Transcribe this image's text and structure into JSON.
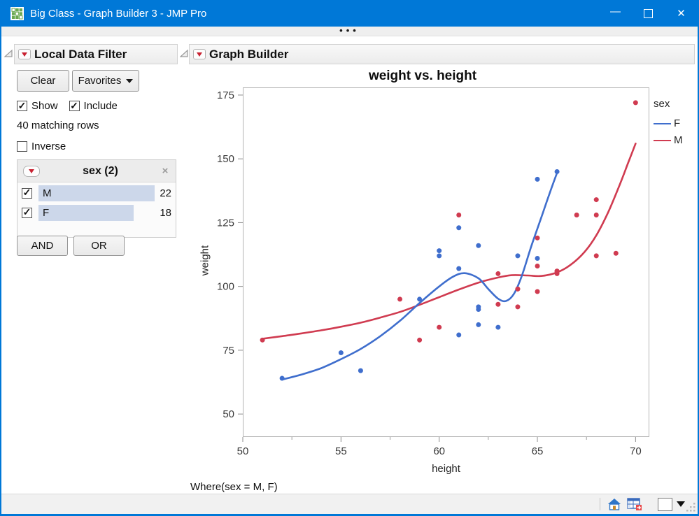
{
  "window": {
    "title": "Big Class - Graph Builder 3 - JMP Pro",
    "controls": {
      "minimize": "—",
      "close": "✕"
    }
  },
  "ribbon": {
    "collapsed_indicator": "•••"
  },
  "filter": {
    "title": "Local Data Filter",
    "buttons": {
      "clear": "Clear",
      "favorites": "Favorites",
      "and": "AND",
      "or": "OR"
    },
    "checkboxes": {
      "show": {
        "label": "Show",
        "checked": true
      },
      "include": {
        "label": "Include",
        "checked": true
      },
      "inverse": {
        "label": "Inverse",
        "checked": false
      }
    },
    "matching_rows_text": "40 matching rows",
    "group": {
      "title": "sex (2)",
      "close_glyph": "×",
      "rows": [
        {
          "label": "M",
          "count": 22,
          "checked": true
        },
        {
          "label": "F",
          "count": 18,
          "checked": true
        }
      ]
    }
  },
  "graph": {
    "panel_title": "Graph Builder",
    "where_text": "Where(sex = M, F)"
  },
  "chart_data": {
    "type": "scatter",
    "title": "weight vs. height",
    "xlabel": "height",
    "ylabel": "weight",
    "x_range": [
      50,
      70.7
    ],
    "y_range": [
      41,
      178
    ],
    "xticks": [
      50,
      55,
      60,
      65,
      70
    ],
    "xticks_minor": [
      52.5,
      57.5,
      62.5,
      67.5
    ],
    "yticks": [
      50,
      75,
      100,
      125,
      150,
      175
    ],
    "grid": false,
    "legend": {
      "title": "sex",
      "position": "right",
      "entries": [
        {
          "label": "F",
          "color": "#3f6ecd"
        },
        {
          "label": "M",
          "color": "#d03b50"
        }
      ]
    },
    "series": [
      {
        "name": "F",
        "color": "#3f6ecd",
        "points": [
          [
            52,
            64
          ],
          [
            55,
            74
          ],
          [
            56,
            67
          ],
          [
            59,
            95
          ],
          [
            60,
            112
          ],
          [
            60,
            114
          ],
          [
            61,
            81
          ],
          [
            61,
            107
          ],
          [
            61,
            123
          ],
          [
            62,
            85
          ],
          [
            62,
            91
          ],
          [
            62,
            92
          ],
          [
            62,
            116
          ],
          [
            63,
            84
          ],
          [
            64,
            112
          ],
          [
            65,
            111
          ],
          [
            65,
            142
          ],
          [
            66,
            145
          ]
        ],
        "smoother": [
          [
            52,
            63.5
          ],
          [
            53,
            65.5
          ],
          [
            54,
            68
          ],
          [
            55,
            71.5
          ],
          [
            56,
            75.5
          ],
          [
            57,
            80.5
          ],
          [
            58,
            86.5
          ],
          [
            59,
            93.5
          ],
          [
            60,
            100
          ],
          [
            60.7,
            103.8
          ],
          [
            61.3,
            105.2
          ],
          [
            62,
            103.2
          ],
          [
            62.5,
            99
          ],
          [
            63,
            95.2
          ],
          [
            63.4,
            94.3
          ],
          [
            63.8,
            97
          ],
          [
            64.2,
            104
          ],
          [
            64.7,
            116
          ],
          [
            65.2,
            127
          ],
          [
            65.6,
            136
          ],
          [
            66,
            144.5
          ]
        ]
      },
      {
        "name": "M",
        "color": "#d03b50",
        "points": [
          [
            51,
            79
          ],
          [
            58,
            95
          ],
          [
            59,
            79
          ],
          [
            60,
            84
          ],
          [
            61,
            128
          ],
          [
            63,
            93
          ],
          [
            63,
            105
          ],
          [
            64,
            92
          ],
          [
            64,
            99
          ],
          [
            64,
            99
          ],
          [
            65,
            98
          ],
          [
            65,
            108
          ],
          [
            65,
            119
          ],
          [
            66,
            105
          ],
          [
            66,
            106
          ],
          [
            66,
            106
          ],
          [
            67,
            128
          ],
          [
            68,
            112
          ],
          [
            68,
            128
          ],
          [
            68,
            134
          ],
          [
            69,
            113
          ],
          [
            70,
            172
          ]
        ],
        "smoother": [
          [
            51,
            79.5
          ],
          [
            52,
            80.5
          ],
          [
            53,
            81.6
          ],
          [
            54,
            82.8
          ],
          [
            55,
            84.2
          ],
          [
            56,
            85.8
          ],
          [
            57,
            87.8
          ],
          [
            58,
            90
          ],
          [
            59,
            92.8
          ],
          [
            60,
            95.8
          ],
          [
            61,
            98.8
          ],
          [
            62,
            101.5
          ],
          [
            63,
            103.5
          ],
          [
            63.7,
            104.4
          ],
          [
            64.5,
            104.3
          ],
          [
            65.2,
            104.1
          ],
          [
            66,
            105.5
          ],
          [
            66.7,
            108.5
          ],
          [
            67.4,
            113.5
          ],
          [
            68,
            120
          ],
          [
            68.6,
            129
          ],
          [
            69.2,
            140
          ],
          [
            69.6,
            148
          ],
          [
            70,
            156
          ]
        ]
      }
    ]
  },
  "status_bar": {
    "icon_names": [
      "home-icon",
      "data-table-icon",
      "color-swatch",
      "dropdown-arrow",
      "resize-grip"
    ]
  }
}
